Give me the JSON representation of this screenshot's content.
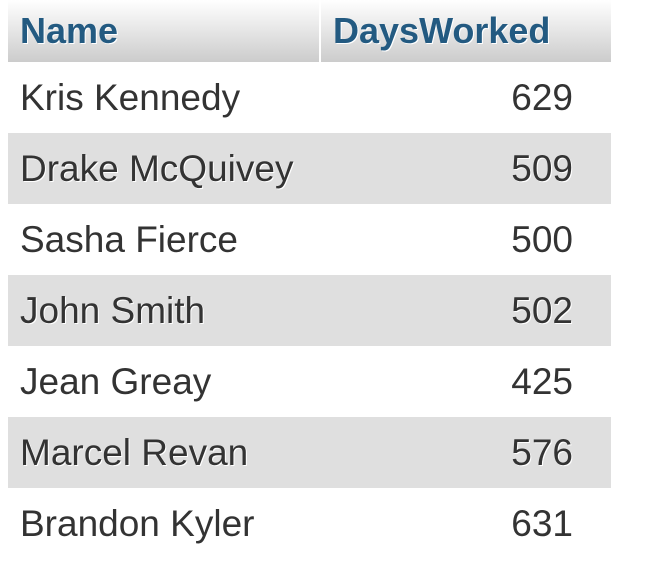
{
  "table": {
    "columns": {
      "name": "Name",
      "days_worked": "DaysWorked"
    },
    "rows": [
      {
        "name": "Kris Kennedy",
        "days_worked": "629"
      },
      {
        "name": "Drake McQuivey",
        "days_worked": "509"
      },
      {
        "name": "Sasha Fierce",
        "days_worked": "500"
      },
      {
        "name": "John Smith",
        "days_worked": "502"
      },
      {
        "name": "Jean Greay",
        "days_worked": "425"
      },
      {
        "name": "Marcel Revan",
        "days_worked": "576"
      },
      {
        "name": "Brandon Kyler",
        "days_worked": "631"
      }
    ]
  },
  "colors": {
    "header_text": "#235a81",
    "row_text": "#333333",
    "row_even_bg": "#dfdfdf",
    "row_odd_bg": "#ffffff"
  }
}
